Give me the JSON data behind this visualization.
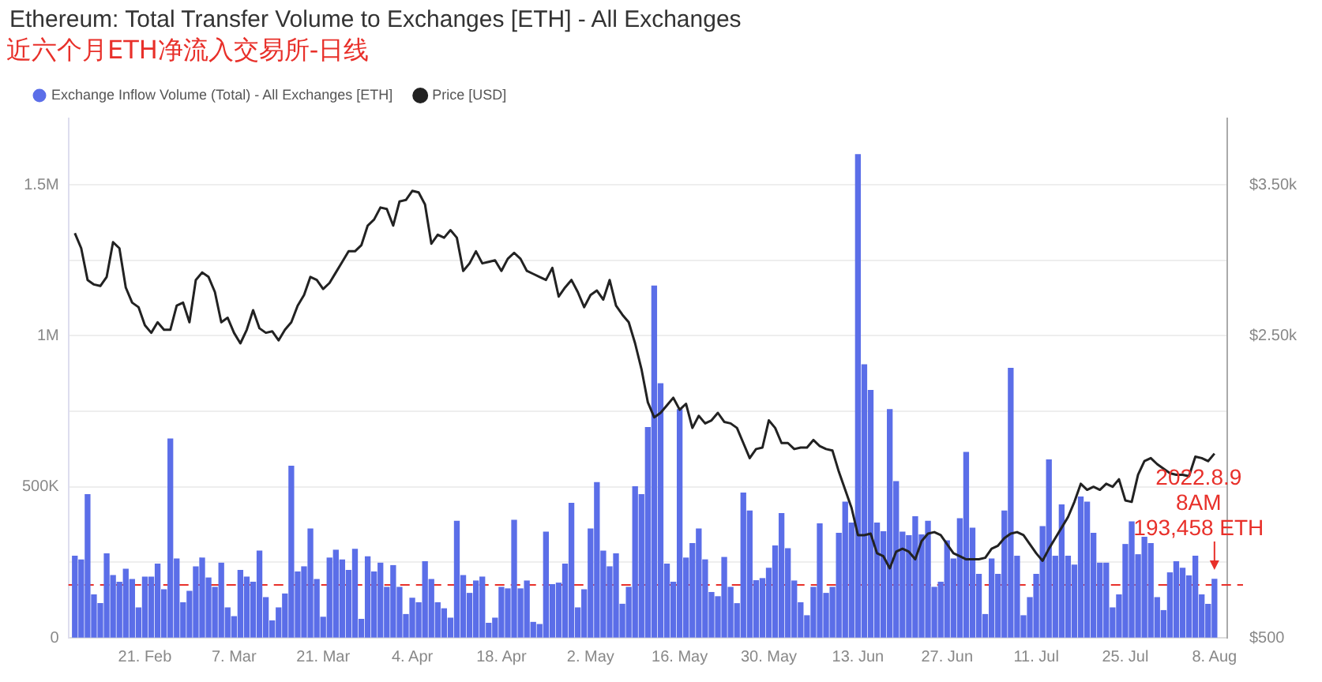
{
  "chart_data": {
    "type": "bar",
    "title": "Ethereum: Total Transfer Volume to Exchanges [ETH] - All Exchanges",
    "subtitle": "近六个月ETH净流入交易所-日线",
    "x": [
      "2022-02-10",
      "2022-02-11",
      "2022-02-12",
      "2022-02-13",
      "2022-02-14",
      "2022-02-15",
      "2022-02-16",
      "2022-02-17",
      "2022-02-18",
      "2022-02-19",
      "2022-02-20",
      "2022-02-21",
      "2022-02-22",
      "2022-02-23",
      "2022-02-24",
      "2022-02-25",
      "2022-02-26",
      "2022-02-27",
      "2022-02-28",
      "2022-03-01",
      "2022-03-02",
      "2022-03-03",
      "2022-03-04",
      "2022-03-05",
      "2022-03-06",
      "2022-03-07",
      "2022-03-08",
      "2022-03-09",
      "2022-03-10",
      "2022-03-11",
      "2022-03-12",
      "2022-03-13",
      "2022-03-14",
      "2022-03-15",
      "2022-03-16",
      "2022-03-17",
      "2022-03-18",
      "2022-03-19",
      "2022-03-20",
      "2022-03-21",
      "2022-03-22",
      "2022-03-23",
      "2022-03-24",
      "2022-03-25",
      "2022-03-26",
      "2022-03-27",
      "2022-03-28",
      "2022-03-29",
      "2022-03-30",
      "2022-03-31",
      "2022-04-01",
      "2022-04-02",
      "2022-04-03",
      "2022-04-04",
      "2022-04-05",
      "2022-04-06",
      "2022-04-07",
      "2022-04-08",
      "2022-04-09",
      "2022-04-10",
      "2022-04-11",
      "2022-04-12",
      "2022-04-13",
      "2022-04-14",
      "2022-04-15",
      "2022-04-16",
      "2022-04-17",
      "2022-04-18",
      "2022-04-19",
      "2022-04-20",
      "2022-04-21",
      "2022-04-22",
      "2022-04-23",
      "2022-04-24",
      "2022-04-25",
      "2022-04-26",
      "2022-04-27",
      "2022-04-28",
      "2022-04-29",
      "2022-04-30",
      "2022-05-01",
      "2022-05-02",
      "2022-05-03",
      "2022-05-04",
      "2022-05-05",
      "2022-05-06",
      "2022-05-07",
      "2022-05-08",
      "2022-05-09",
      "2022-05-10",
      "2022-05-11",
      "2022-05-12",
      "2022-05-13",
      "2022-05-14",
      "2022-05-15",
      "2022-05-16",
      "2022-05-17",
      "2022-05-18",
      "2022-05-19",
      "2022-05-20",
      "2022-05-21",
      "2022-05-22",
      "2022-05-23",
      "2022-05-24",
      "2022-05-25",
      "2022-05-26",
      "2022-05-27",
      "2022-05-28",
      "2022-05-29",
      "2022-05-30",
      "2022-05-31",
      "2022-06-01",
      "2022-06-02",
      "2022-06-03",
      "2022-06-04",
      "2022-06-05",
      "2022-06-06",
      "2022-06-07",
      "2022-06-08",
      "2022-06-09",
      "2022-06-10",
      "2022-06-11",
      "2022-06-12",
      "2022-06-13",
      "2022-06-14",
      "2022-06-15",
      "2022-06-16",
      "2022-06-17",
      "2022-06-18",
      "2022-06-19",
      "2022-06-20",
      "2022-06-21",
      "2022-06-22",
      "2022-06-23",
      "2022-06-24",
      "2022-06-25",
      "2022-06-26",
      "2022-06-27",
      "2022-06-28",
      "2022-06-29",
      "2022-06-30",
      "2022-07-01",
      "2022-07-02",
      "2022-07-03",
      "2022-07-04",
      "2022-07-05",
      "2022-07-06",
      "2022-07-07",
      "2022-07-08",
      "2022-07-09",
      "2022-07-10",
      "2022-07-11",
      "2022-07-12",
      "2022-07-13",
      "2022-07-14",
      "2022-07-15",
      "2022-07-16",
      "2022-07-17",
      "2022-07-18",
      "2022-07-19",
      "2022-07-20",
      "2022-07-21",
      "2022-07-22",
      "2022-07-23",
      "2022-07-24",
      "2022-07-25",
      "2022-07-26",
      "2022-07-27",
      "2022-07-28",
      "2022-07-29",
      "2022-07-30",
      "2022-07-31",
      "2022-08-01",
      "2022-08-02",
      "2022-08-03",
      "2022-08-04",
      "2022-08-05",
      "2022-08-06",
      "2022-08-07",
      "2022-08-08"
    ],
    "series": [
      {
        "name": "Exchange Inflow Volume (Total) - All Exchanges [ETH]",
        "color": "#5b6ee8",
        "values": [
          270000,
          258000,
          474000,
          142000,
          113000,
          278000,
          206000,
          184000,
          227000,
          193000,
          99000,
          201000,
          201000,
          244000,
          159000,
          658000,
          261000,
          116000,
          154000,
          235000,
          264000,
          198000,
          167000,
          247000,
          99000,
          70000,
          223000,
          201000,
          184000,
          287000,
          133000,
          56000,
          99000,
          145000,
          568000,
          218000,
          235000,
          360000,
          193000,
          68000,
          264000,
          290000,
          258000,
          223000,
          293000,
          61000,
          268000,
          218000,
          247000,
          167000,
          239000,
          167000,
          77000,
          131000,
          116000,
          252000,
          193000,
          116000,
          96000,
          65000,
          386000,
          206000,
          147000,
          188000,
          201000,
          48000,
          65000,
          167000,
          162000,
          389000,
          162000,
          188000,
          51000,
          44000,
          350000,
          176000,
          181000,
          244000,
          445000,
          99000,
          159000,
          360000,
          514000,
          287000,
          235000,
          278000,
          111000,
          167000,
          500000,
          474000,
          696000,
          1165000,
          841000,
          244000,
          184000,
          756000,
          264000,
          312000,
          360000,
          258000,
          150000,
          136000,
          266000,
          167000,
          113000,
          479000,
          420000,
          189000,
          196000,
          230000,
          304000,
          411000,
          295000,
          188000,
          116000,
          73000,
          167000,
          377000,
          147000,
          167000,
          346000,
          449000,
          380000,
          1600000,
          904000,
          819000,
          380000,
          351000,
          756000,
          517000,
          350000,
          338000,
          401000,
          341000,
          386000,
          167000,
          184000,
          321000,
          261000,
          394000,
          614000,
          363000,
          210000,
          77000,
          261000,
          210000,
          420000,
          892000,
          270000,
          73000,
          133000,
          210000,
          368000,
          589000,
          270000,
          440000,
          270000,
          241000,
          466000,
          449000,
          346000,
          247000,
          247000,
          99000,
          142000,
          309000,
          384000,
          275000,
          333000,
          312000,
          133000,
          90000,
          215000,
          252000,
          230000,
          205000,
          270000,
          142000,
          111000,
          193458
        ]
      },
      {
        "name": "Price [USD]",
        "type": "line",
        "axis": "y2",
        "color": "#222222",
        "values": [
          3180,
          3080,
          2870,
          2840,
          2830,
          2890,
          3120,
          3080,
          2820,
          2720,
          2690,
          2570,
          2520,
          2590,
          2540,
          2540,
          2700,
          2720,
          2590,
          2870,
          2920,
          2890,
          2790,
          2590,
          2620,
          2520,
          2450,
          2540,
          2670,
          2550,
          2520,
          2530,
          2470,
          2540,
          2590,
          2700,
          2770,
          2890,
          2870,
          2810,
          2850,
          2920,
          2990,
          3060,
          3060,
          3100,
          3230,
          3270,
          3350,
          3340,
          3230,
          3390,
          3400,
          3460,
          3450,
          3370,
          3110,
          3170,
          3150,
          3200,
          3150,
          2930,
          2980,
          3060,
          2980,
          2990,
          3000,
          2930,
          3010,
          3050,
          3010,
          2930,
          2910,
          2890,
          2870,
          2950,
          2760,
          2820,
          2870,
          2790,
          2690,
          2770,
          2800,
          2740,
          2870,
          2700,
          2640,
          2590,
          2450,
          2280,
          2060,
          1960,
          1990,
          2040,
          2090,
          2010,
          2050,
          1890,
          1970,
          1920,
          1940,
          1990,
          1930,
          1920,
          1890,
          1790,
          1690,
          1750,
          1760,
          1940,
          1890,
          1790,
          1790,
          1750,
          1760,
          1760,
          1810,
          1770,
          1750,
          1740,
          1600,
          1480,
          1360,
          1180,
          1180,
          1190,
          1060,
          1040,
          960,
          1070,
          1090,
          1070,
          1020,
          1140,
          1190,
          1200,
          1180,
          1120,
          1060,
          1040,
          1020,
          1020,
          1020,
          1030,
          1090,
          1110,
          1160,
          1190,
          1200,
          1180,
          1120,
          1060,
          1010,
          1090,
          1160,
          1230,
          1300,
          1400,
          1520,
          1480,
          1500,
          1480,
          1520,
          1500,
          1550,
          1410,
          1400,
          1580,
          1670,
          1690,
          1650,
          1620,
          1590,
          1580,
          1580,
          1570,
          1700,
          1690,
          1670,
          1720
        ]
      }
    ],
    "xlim": [
      "2022-02-09",
      "2022-08-10"
    ],
    "xticks": [
      {
        "value": "2022-02-21",
        "label": "21. Feb"
      },
      {
        "value": "2022-03-07",
        "label": "7. Mar"
      },
      {
        "value": "2022-03-21",
        "label": "21. Mar"
      },
      {
        "value": "2022-04-04",
        "label": "4. Apr"
      },
      {
        "value": "2022-04-18",
        "label": "18. Apr"
      },
      {
        "value": "2022-05-02",
        "label": "2. May"
      },
      {
        "value": "2022-05-16",
        "label": "16. May"
      },
      {
        "value": "2022-05-30",
        "label": "30. May"
      },
      {
        "value": "2022-06-13",
        "label": "13. Jun"
      },
      {
        "value": "2022-06-27",
        "label": "27. Jun"
      },
      {
        "value": "2022-07-11",
        "label": "11. Jul"
      },
      {
        "value": "2022-07-25",
        "label": "25. Jul"
      },
      {
        "value": "2022-08-08",
        "label": "8. Aug"
      }
    ],
    "ylim": [
      0,
      1720000
    ],
    "yticks": [
      0,
      {
        "value": 250000,
        "label": null
      },
      {
        "value": 500000,
        "label": "500K"
      },
      {
        "value": 750000,
        "label": null
      },
      {
        "value": 1000000,
        "label": "1M"
      },
      {
        "value": 1250000,
        "label": null
      },
      {
        "value": 1500000,
        "label": "1.5M"
      }
    ],
    "y2lim": [
      500,
      3940
    ],
    "y2ticks": [
      {
        "value": 500,
        "label": "$500"
      },
      {
        "value": 2500,
        "label": "$2.50k"
      },
      {
        "value": 3500,
        "label": "$3.50k"
      }
    ],
    "ref_lines": [
      {
        "axis": "y",
        "value": 175000,
        "color": "#e8302a",
        "line_style": "dashed"
      }
    ],
    "annotations": [
      {
        "text": "2022.8.9\n8AM\n193,458 ETH",
        "x": "2022-08-08",
        "y": 193458
      }
    ],
    "grid": "y",
    "legend": "top left"
  }
}
